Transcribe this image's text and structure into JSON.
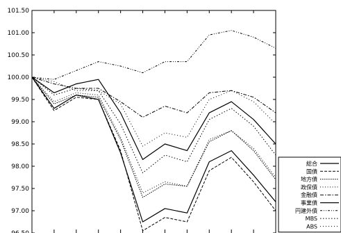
{
  "chart_data": {
    "type": "line",
    "title": "",
    "xlabel": "",
    "ylabel": "",
    "ylim": [
      96.5,
      101.5
    ],
    "yticks": [
      "101.50",
      "101.00",
      "100.50",
      "100.00",
      "99.50",
      "99.00",
      "98.50",
      "98.00",
      "97.50",
      "97.00",
      "96.50"
    ],
    "x": [
      1,
      2,
      3,
      4,
      5,
      6,
      7,
      8,
      9,
      10,
      11,
      12
    ],
    "grid": false,
    "legend_position": "bottom-right",
    "series": [
      {
        "name": "総合",
        "dash": "",
        "width": 1.2,
        "values": [
          100.0,
          99.3,
          99.6,
          99.5,
          98.3,
          96.75,
          97.05,
          96.95,
          98.1,
          98.35,
          97.8,
          97.2
        ]
      },
      {
        "name": "国債",
        "dash": "4,2",
        "width": 1.0,
        "values": [
          100.0,
          99.25,
          99.55,
          99.5,
          98.35,
          96.55,
          96.85,
          96.75,
          97.9,
          98.2,
          97.65,
          97.0
        ]
      },
      {
        "name": "地方債",
        "dash": "1.5,1.5",
        "width": 1.0,
        "values": [
          100.0,
          99.4,
          99.6,
          99.55,
          98.6,
          97.3,
          97.6,
          97.55,
          98.55,
          98.8,
          98.35,
          97.7
        ]
      },
      {
        "name": "政保債",
        "dash": "1,2.5",
        "width": 1.0,
        "values": [
          100.0,
          99.45,
          99.65,
          99.6,
          98.65,
          97.4,
          97.65,
          97.55,
          98.6,
          98.8,
          98.4,
          97.75
        ]
      },
      {
        "name": "金融債",
        "dash": "5,2,1.5,2",
        "width": 1.0,
        "values": [
          100.0,
          99.85,
          99.75,
          99.75,
          99.45,
          99.1,
          99.35,
          99.2,
          99.65,
          99.7,
          99.55,
          99.2
        ]
      },
      {
        "name": "事業債",
        "dash": "",
        "width": 1.2,
        "values": [
          100.0,
          99.65,
          99.85,
          99.95,
          99.2,
          98.15,
          98.5,
          98.35,
          99.2,
          99.45,
          99.05,
          98.5
        ]
      },
      {
        "name": "円建外債",
        "dash": "3,2,1,2,1,2",
        "width": 1.0,
        "values": [
          100.0,
          99.95,
          100.15,
          100.35,
          100.25,
          100.1,
          100.35,
          100.35,
          100.95,
          101.05,
          100.9,
          100.65
        ]
      },
      {
        "name": "MBS",
        "dash": "1.5,2.5",
        "width": 1.0,
        "values": [
          100.0,
          99.6,
          99.75,
          99.7,
          98.95,
          97.85,
          98.25,
          98.1,
          99.05,
          99.3,
          98.9,
          98.25
        ]
      },
      {
        "name": "ABS",
        "dash": "1,3",
        "width": 1.0,
        "values": [
          100.0,
          99.9,
          99.7,
          99.7,
          99.4,
          98.45,
          98.75,
          98.65,
          99.5,
          99.7,
          99.45,
          98.95
        ]
      }
    ]
  }
}
